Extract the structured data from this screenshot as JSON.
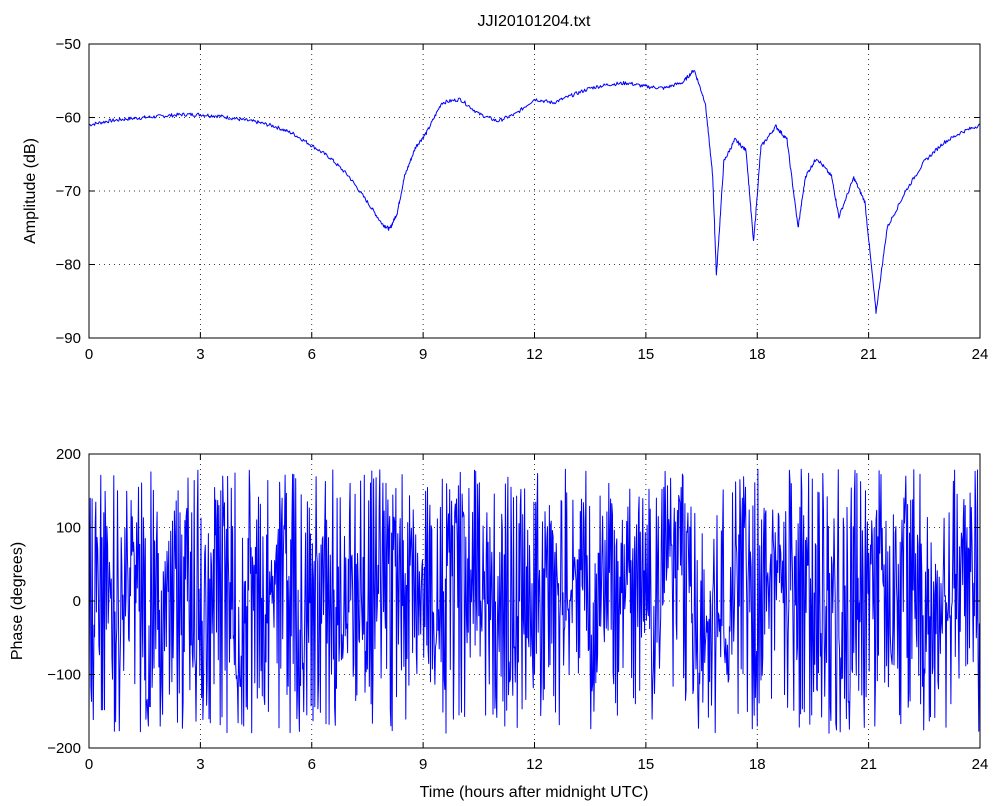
{
  "chart_data": [
    {
      "type": "line",
      "title": "JJI20101204.txt",
      "xlabel": "",
      "ylabel": "Amplitude (dB)",
      "xlim": [
        0,
        24
      ],
      "ylim": [
        -90,
        -50
      ],
      "xticks": [
        0,
        3,
        6,
        9,
        12,
        15,
        18,
        21,
        24
      ],
      "yticks": [
        -90,
        -80,
        -70,
        -60,
        -50
      ],
      "grid": true,
      "color": "#0000ff",
      "series": [
        {
          "x": [
            0,
            0.5,
            1,
            1.5,
            2,
            2.5,
            3,
            3.5,
            4,
            4.5,
            5,
            5.5,
            6,
            6.5,
            7,
            7.5,
            7.9,
            8.1,
            8.3,
            8.5,
            8.8,
            9.1,
            9.5,
            10,
            10.5,
            11,
            11.5,
            12,
            12.5,
            13,
            13.5,
            14,
            14.5,
            15,
            15.5,
            16,
            16.3,
            16.6,
            16.8,
            16.9,
            17.1,
            17.4,
            17.7,
            17.9,
            18.1,
            18.5,
            18.8,
            19.1,
            19.3,
            19.6,
            20,
            20.2,
            20.6,
            20.9,
            21.2,
            21.5,
            22,
            22.5,
            23,
            23.5,
            24
          ],
          "values": [
            -61,
            -60.5,
            -60.2,
            -60,
            -59.8,
            -59.6,
            -59.6,
            -59.8,
            -60.2,
            -60.6,
            -61.2,
            -62.2,
            -63.8,
            -65.5,
            -68,
            -71.5,
            -74.5,
            -75.2,
            -73,
            -68,
            -64,
            -62,
            -58,
            -57.5,
            -59.5,
            -60.5,
            -59.5,
            -57.5,
            -58,
            -57,
            -56,
            -55.5,
            -55.3,
            -55.8,
            -56,
            -55.2,
            -53.5,
            -58,
            -68,
            -81.5,
            -66,
            -63,
            -64.5,
            -77,
            -64,
            -61.2,
            -63,
            -75,
            -68,
            -65.5,
            -68,
            -73.5,
            -68.2,
            -71.5,
            -86.5,
            -75,
            -70,
            -66,
            -63.5,
            -62,
            -61
          ]
        }
      ]
    },
    {
      "type": "line",
      "title": "",
      "xlabel": "Time (hours after midnight UTC)",
      "ylabel": "Phase (degrees)",
      "xlim": [
        0,
        24
      ],
      "ylim": [
        -200,
        200
      ],
      "xticks": [
        0,
        3,
        6,
        9,
        12,
        15,
        18,
        21,
        24
      ],
      "yticks": [
        -200,
        -100,
        0,
        100,
        200
      ],
      "grid": true,
      "color": "#0000ff",
      "phase_wrap": [
        -180,
        180
      ],
      "series": [
        {
          "x": [
            0,
            0.4,
            0.8,
            1.2,
            1.6,
            2.0,
            2.4,
            2.8,
            3.2,
            3.6,
            4.0,
            4.4,
            4.8,
            5.2,
            5.6,
            6.0,
            6.4,
            6.8,
            7.2,
            7.6,
            8.0,
            8.4,
            8.8,
            9.2,
            9.6,
            10.0,
            10.4,
            10.8,
            11.2,
            11.6,
            12.0,
            12.4,
            12.8,
            13.2,
            13.6,
            14.0,
            14.4,
            14.8,
            15.2,
            15.6,
            16.0,
            16.4,
            16.8,
            17.2,
            17.6,
            18.0,
            18.4,
            18.8,
            19.2,
            19.6,
            20.0,
            20.4,
            20.8,
            21.2,
            21.6,
            22.0,
            22.4,
            22.8,
            23.2,
            23.6,
            24.0
          ],
          "values": [
            -150,
            120,
            -60,
            80,
            -170,
            40,
            150,
            -90,
            10,
            170,
            -120,
            60,
            -30,
            140,
            -160,
            20,
            110,
            -80,
            50,
            -140,
            160,
            -20,
            90,
            -110,
            30,
            175,
            -60,
            100,
            -170,
            0,
            -100,
            130,
            -40,
            70,
            -150,
            160,
            -10,
            120,
            -90,
            45,
            170,
            -130,
            10,
            -60,
            140,
            -170,
            80,
            -30,
            150,
            -120,
            60,
            -160,
            20,
            110,
            -70,
            170,
            -140,
            50,
            -20,
            130,
            -110
          ]
        }
      ]
    }
  ]
}
